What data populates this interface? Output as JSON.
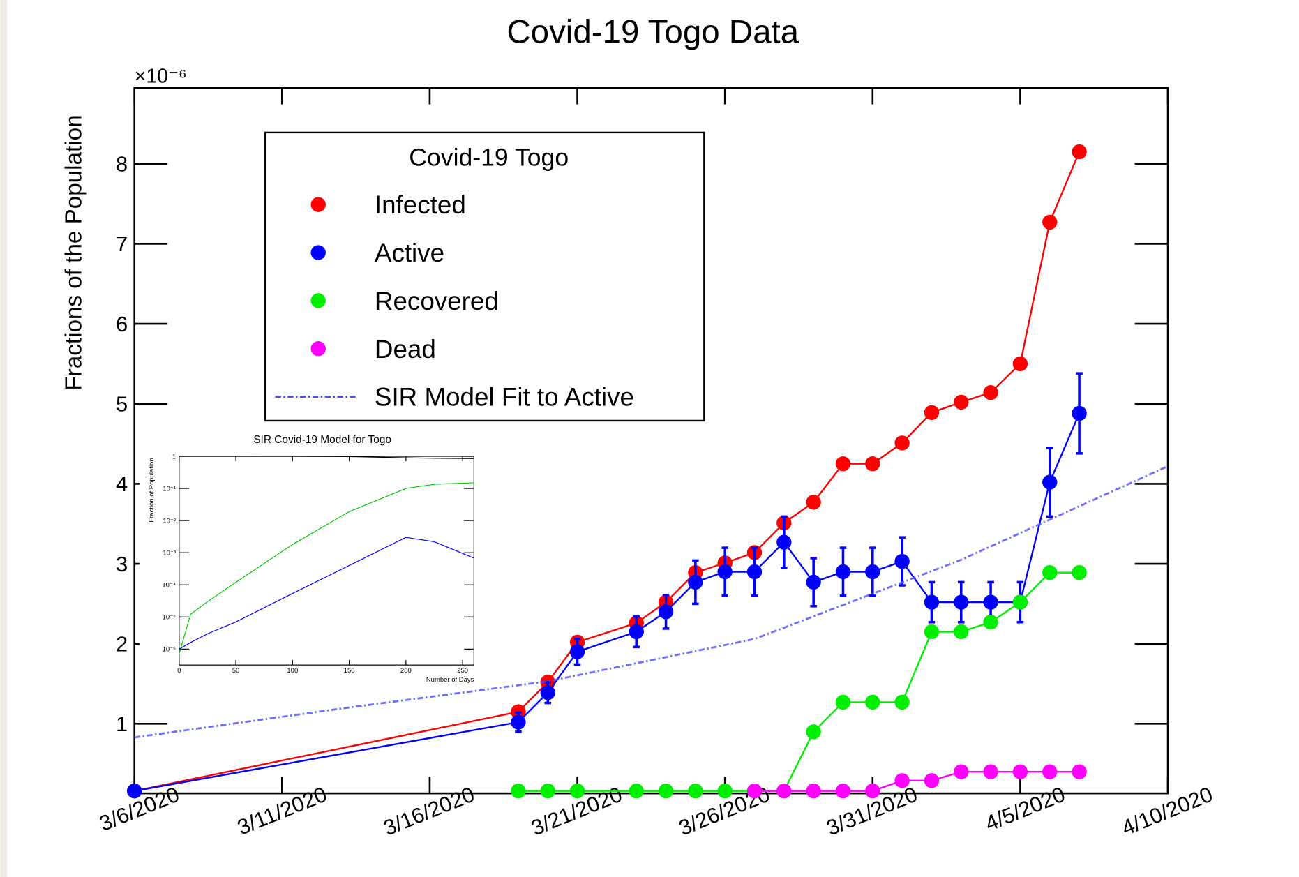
{
  "chart_data": [
    {
      "type": "line",
      "title": "Covid-19 Togo Data",
      "y_label": "Fractions of the Population",
      "y_multiplier": "×10⁻⁶",
      "legend_title": "Covid-19 Togo",
      "legend": "upper-left",
      "x": [
        "2020-03-06",
        "2020-03-19",
        "2020-03-20",
        "2020-03-21",
        "2020-03-23",
        "2020-03-24",
        "2020-03-25",
        "2020-03-26",
        "2020-03-27",
        "2020-03-28",
        "2020-03-29",
        "2020-03-30",
        "2020-03-31",
        "2020-04-01",
        "2020-04-02",
        "2020-04-03",
        "2020-04-04",
        "2020-04-05",
        "2020-04-06",
        "2020-04-07"
      ],
      "series": [
        {
          "name": "Infected",
          "color": "#ff0000",
          "values": [
            0.16,
            1.15,
            1.52,
            2.02,
            2.26,
            2.52,
            2.89,
            3.01,
            3.14,
            3.51,
            3.77,
            4.25,
            4.25,
            4.51,
            4.89,
            5.02,
            5.14,
            5.5,
            7.27,
            8.15
          ]
        },
        {
          "name": "Active",
          "color": "#0000ff",
          "values": [
            0.16,
            1.02,
            1.39,
            1.9,
            2.15,
            2.4,
            2.77,
            2.9,
            2.9,
            3.27,
            2.77,
            2.9,
            2.9,
            3.03,
            2.52,
            2.52,
            2.52,
            2.52,
            4.02,
            4.88
          ],
          "errors": [
            0,
            0.12,
            0.13,
            0.16,
            0.19,
            0.21,
            0.27,
            0.3,
            0.3,
            0.32,
            0.3,
            0.3,
            0.3,
            0.3,
            0.25,
            0.25,
            0.25,
            0.25,
            0.43,
            0.5
          ]
        },
        {
          "name": "Recovered",
          "color": "#00ee00",
          "values": [
            null,
            0.16,
            0.16,
            0.16,
            0.16,
            0.16,
            0.16,
            0.16,
            0.16,
            0.16,
            0.9,
            1.27,
            1.27,
            1.27,
            2.15,
            2.15,
            2.27,
            2.52,
            2.89,
            2.89
          ]
        },
        {
          "name": "Dead",
          "color": "#ff00ff",
          "values": [
            null,
            null,
            null,
            null,
            null,
            null,
            null,
            null,
            0.16,
            0.16,
            0.16,
            0.16,
            0.16,
            0.29,
            0.29,
            0.4,
            0.4,
            0.4,
            0.4,
            0.4
          ]
        },
        {
          "name": "SIR Model Fit to Active",
          "color": "#4b4bff",
          "style": "dash-dot",
          "x": [
            "2020-03-06",
            "2020-03-13",
            "2020-03-20",
            "2020-03-27",
            "2020-04-03",
            "2020-04-10"
          ],
          "values": [
            0.83,
            1.19,
            1.53,
            2.06,
            3.05,
            4.22
          ]
        }
      ],
      "xlim": [
        "2020-03-06",
        "2020-04-10"
      ],
      "xticks": [
        {
          "value": "2020-03-06",
          "label": "3/6/2020"
        },
        {
          "value": "2020-03-11",
          "label": "3/11/2020"
        },
        {
          "value": "2020-03-16",
          "label": "3/16/2020"
        },
        {
          "value": "2020-03-21",
          "label": "3/21/2020"
        },
        {
          "value": "2020-03-26",
          "label": "3/26/2020"
        },
        {
          "value": "2020-03-31",
          "label": "3/31/2020"
        },
        {
          "value": "2020-04-05",
          "label": "4/5/2020"
        },
        {
          "value": "2020-04-10",
          "label": "4/10/2020"
        }
      ],
      "ylim": [
        0.13,
        8.95
      ],
      "yticks": [
        1,
        2,
        3,
        4,
        5,
        6,
        7,
        8
      ]
    },
    {
      "type": "line",
      "title": "SIR Covid-19 Model for Togo",
      "x_label": "Number of Days",
      "y_label": "Fraction of Population",
      "log_y": true,
      "x": [
        0,
        10,
        25,
        50,
        100,
        150,
        200,
        225,
        260
      ],
      "series": [
        {
          "color": "#000000",
          "values": [
            1,
            1,
            1,
            1,
            0.998,
            0.98,
            0.9,
            0.87,
            0.85
          ]
        },
        {
          "color": "#00cc00",
          "values": [
            7e-07,
            1.2e-05,
            3e-05,
            0.00012,
            0.0018,
            0.019,
            0.1,
            0.135,
            0.15
          ]
        },
        {
          "color": "#0000ff",
          "values": [
            1e-06,
            1.6e-06,
            3e-06,
            7e-06,
            5.4e-05,
            0.0004,
            0.003,
            0.0022,
            0.00068
          ]
        }
      ],
      "xlim": [
        0,
        260
      ],
      "xticks": [
        0,
        50,
        100,
        150,
        200,
        250
      ],
      "ylim": [
        3.2e-07,
        1
      ],
      "yticks": [
        {
          "value": 1e-06,
          "label": "10⁻⁶"
        },
        {
          "value": 1e-05,
          "label": "10⁻⁵"
        },
        {
          "value": 0.0001,
          "label": "10⁻⁴"
        },
        {
          "value": 0.001,
          "label": "10⁻³"
        },
        {
          "value": 0.01,
          "label": "10⁻²"
        },
        {
          "value": 0.1,
          "label": "10⁻¹"
        },
        1
      ]
    }
  ]
}
